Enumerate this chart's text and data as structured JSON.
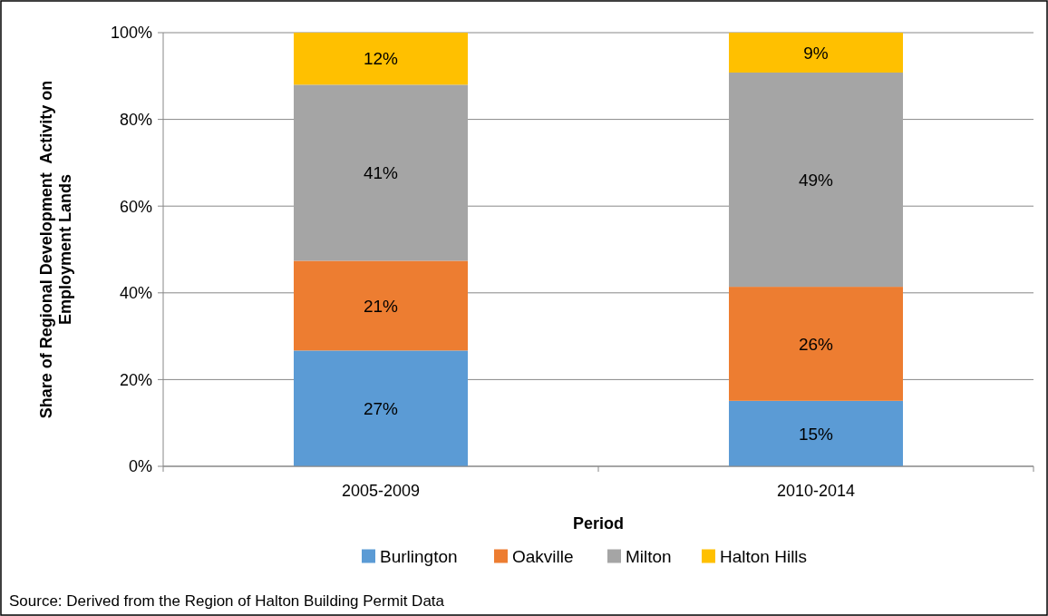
{
  "chart_data": {
    "type": "bar",
    "stacked": true,
    "xlabel": "Period",
    "ylabel": "Share of Regional Development  Activity on\nEmployment Lands",
    "categories": [
      "2005-2009",
      "2010-2014"
    ],
    "series": [
      {
        "name": "Burlington",
        "color": "#5b9bd5",
        "values": [
          26.7,
          15.1
        ],
        "value_labels": [
          "27%",
          "15%"
        ]
      },
      {
        "name": "Oakville",
        "color": "#ed7d31",
        "values": [
          20.7,
          26.3
        ],
        "value_labels": [
          "21%",
          "26%"
        ]
      },
      {
        "name": "Milton",
        "color": "#a5a5a5",
        "values": [
          40.6,
          49.4
        ],
        "value_labels": [
          "41%",
          "49%"
        ]
      },
      {
        "name": "Halton Hills",
        "color": "#ffc000",
        "values": [
          12.0,
          9.2
        ],
        "value_labels": [
          "12%",
          "9%"
        ]
      }
    ],
    "ylim": [
      0,
      100
    ],
    "yticks": [
      {
        "value": 0,
        "label": "0%"
      },
      {
        "value": 20,
        "label": "20%"
      },
      {
        "value": 40,
        "label": "40%"
      },
      {
        "value": 60,
        "label": "60%"
      },
      {
        "value": 80,
        "label": "80%"
      },
      {
        "value": 100,
        "label": "100%"
      }
    ],
    "grid": "y",
    "legend": "bottom",
    "annotations": [
      "Source: Derived from the Region of Halton Building Permit Data"
    ]
  }
}
